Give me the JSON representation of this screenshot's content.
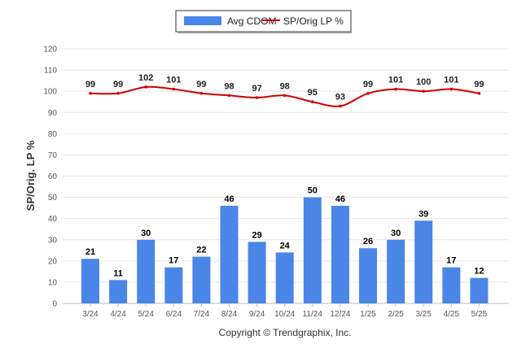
{
  "chart_data": {
    "type": "bar",
    "categories": [
      "3/24",
      "4/24",
      "5/24",
      "6/24",
      "7/24",
      "8/24",
      "9/24",
      "10/24",
      "11/24",
      "12/24",
      "1/25",
      "2/25",
      "3/25",
      "4/25",
      "5/25"
    ],
    "series": [
      {
        "name": "Avg CDOM",
        "type": "bar",
        "color": "#4a86e8",
        "values": [
          21,
          11,
          30,
          17,
          22,
          46,
          29,
          24,
          50,
          46,
          26,
          30,
          39,
          17,
          12
        ]
      },
      {
        "name": "SP/Orig LP %",
        "type": "line",
        "color": "#cc0000",
        "values": [
          99,
          99,
          102,
          101,
          99,
          98,
          97,
          98,
          95,
          93,
          99,
          101,
          100,
          101,
          99
        ]
      }
    ],
    "ylabel": "SP/Orig. LP %",
    "ylim": [
      0,
      120
    ],
    "yticks": [
      0,
      10,
      20,
      30,
      40,
      50,
      60,
      70,
      80,
      90,
      100,
      110,
      120
    ],
    "grid": true,
    "legend": "top-center"
  },
  "footer": {
    "copyright": "Copyright © Trendgraphix, Inc."
  }
}
